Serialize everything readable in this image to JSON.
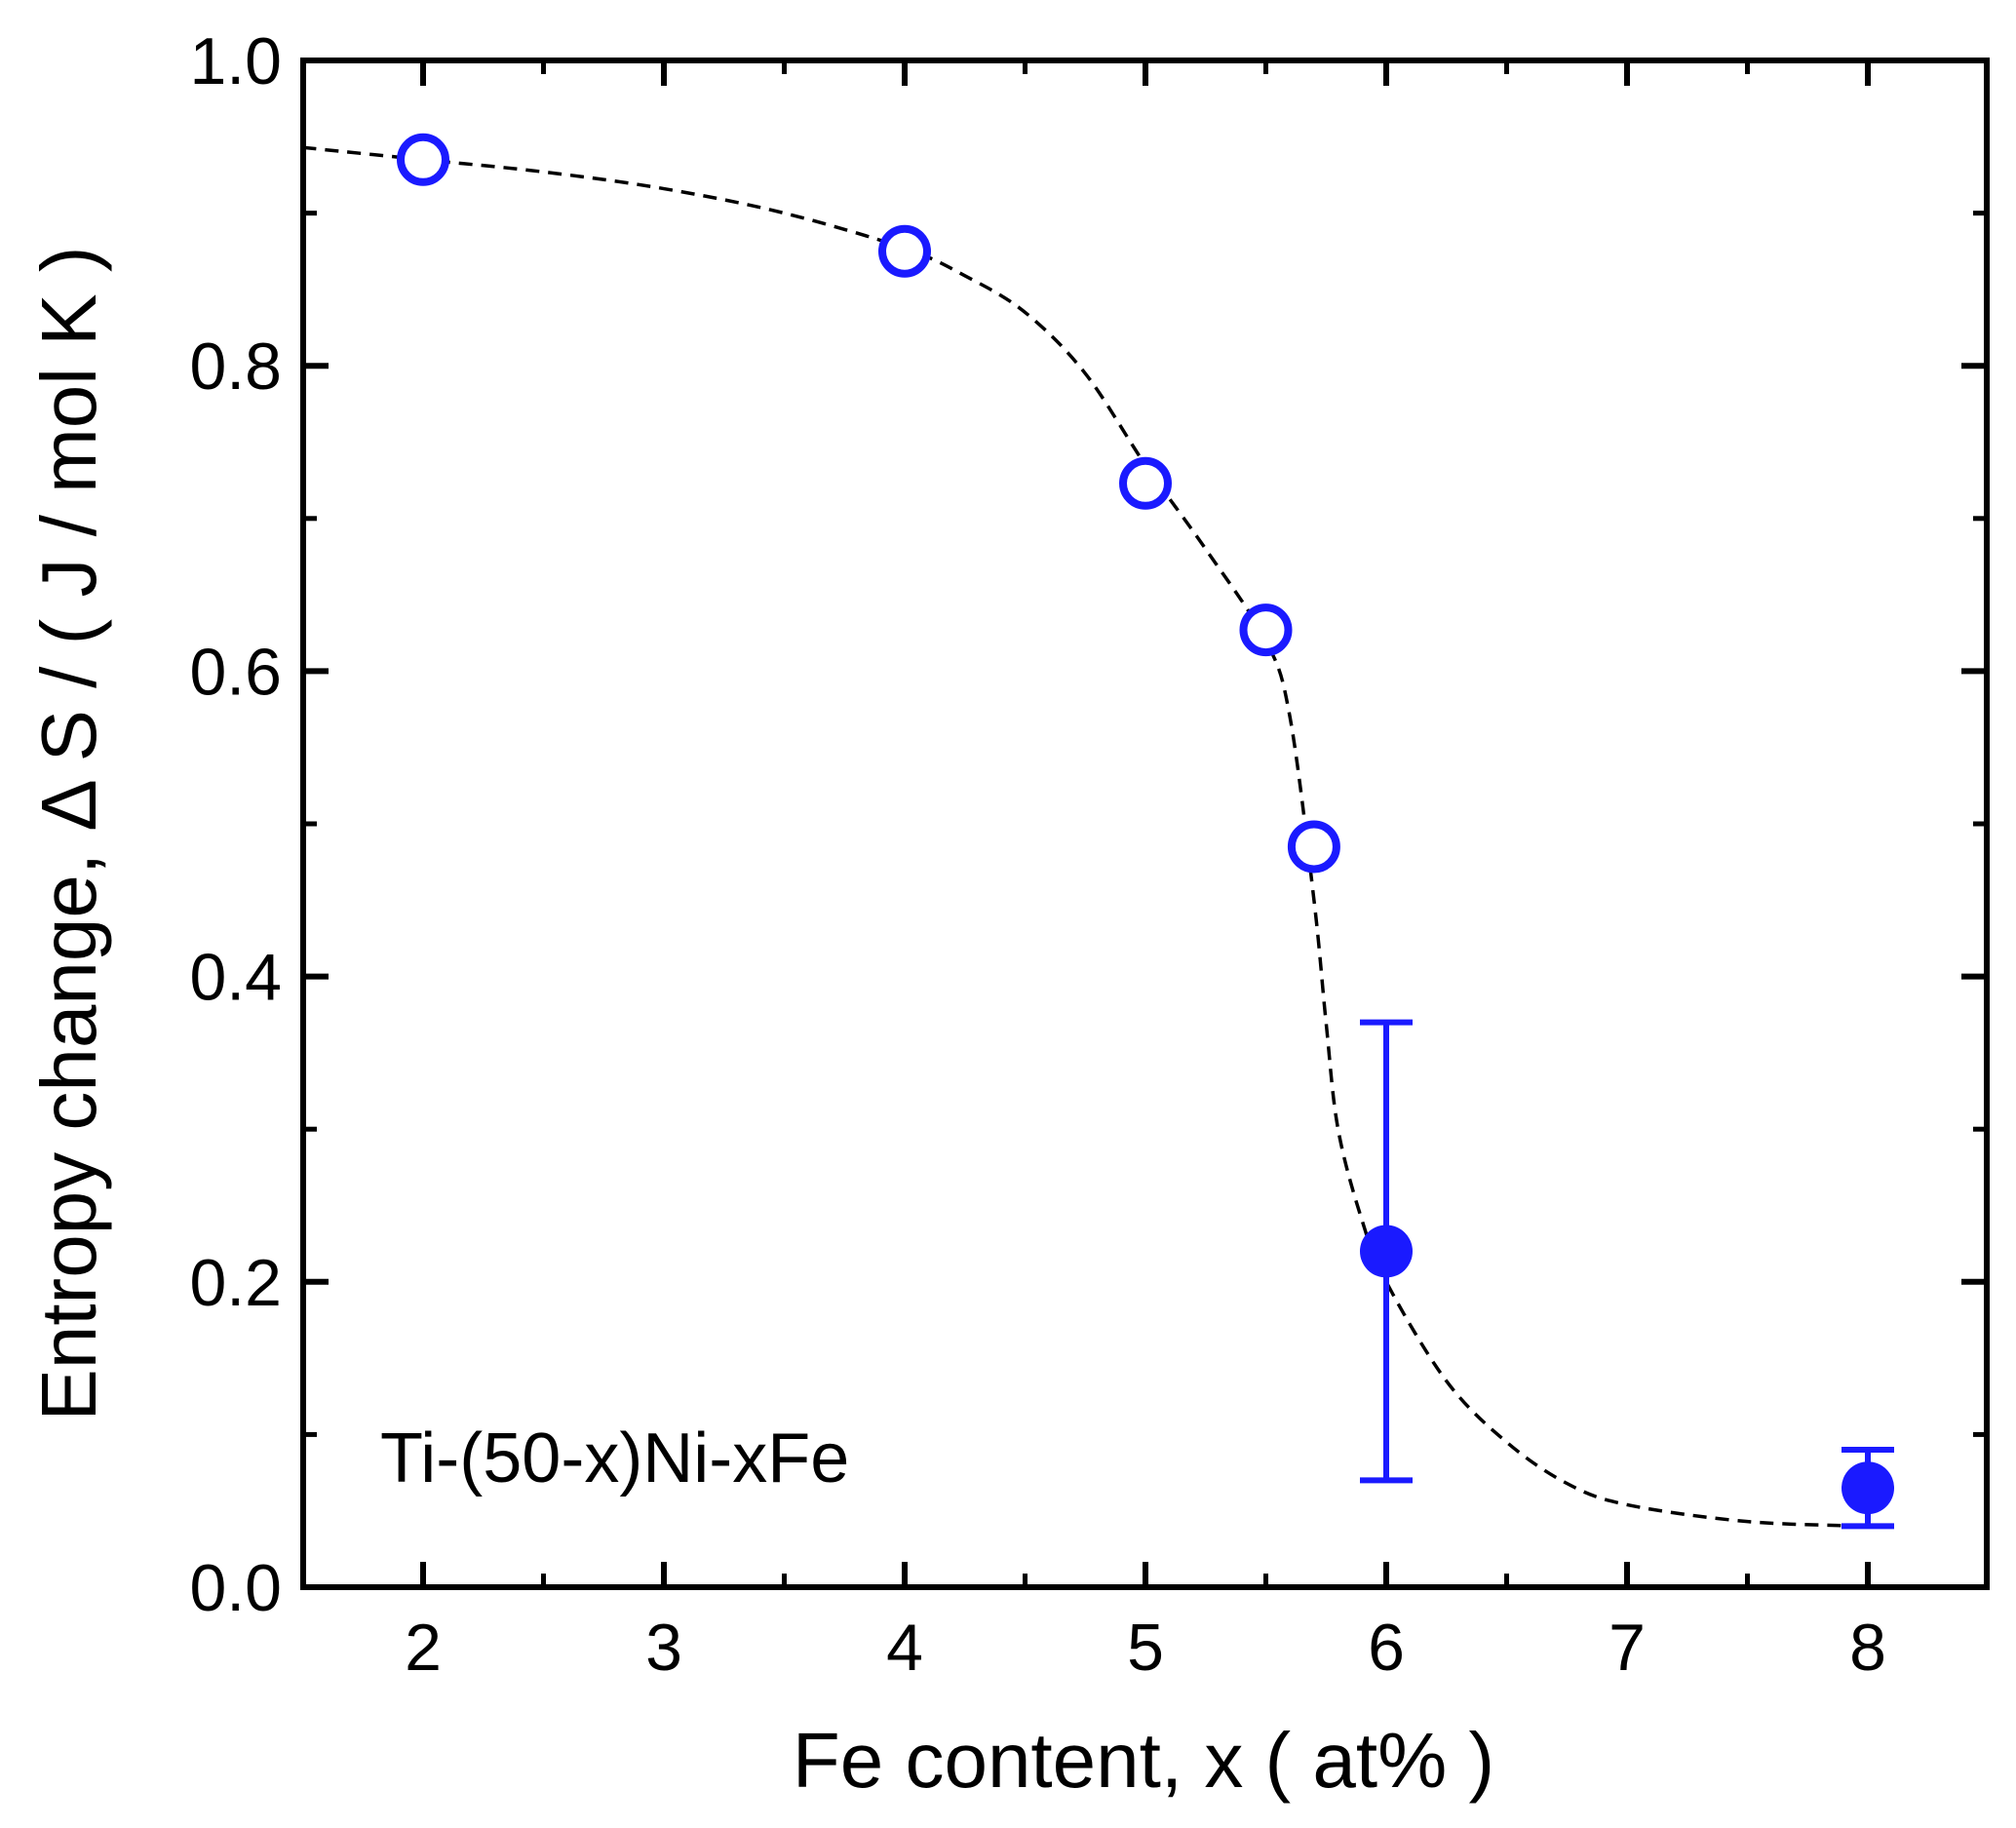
{
  "chart_data": {
    "type": "scatter",
    "xlabel": "Fe content, x ( at% )",
    "ylabel": "Entropy change,  Δ S / ( J / mol K )",
    "annotation": "Ti-(50-x)Ni-xFe",
    "x_ticks": [
      {
        "label": "2",
        "value": 2
      },
      {
        "label": "3",
        "value": 3
      },
      {
        "label": "4",
        "value": 4
      },
      {
        "label": "5",
        "value": 5
      },
      {
        "label": "6",
        "value": 6
      },
      {
        "label": "7",
        "value": 7
      },
      {
        "label": "8",
        "value": 8
      }
    ],
    "y_ticks": [
      {
        "label": "0.0",
        "value": 0.0
      },
      {
        "label": "0.2",
        "value": 0.2
      },
      {
        "label": "0.4",
        "value": 0.4
      },
      {
        "label": "0.6",
        "value": 0.6
      },
      {
        "label": "0.8",
        "value": 0.8
      },
      {
        "label": "1.0",
        "value": 1.0
      }
    ],
    "y_minor_ticks": [
      0.1,
      0.3,
      0.5,
      0.7,
      0.9
    ],
    "ylim": [
      0,
      1.0
    ],
    "x_axis_note": "non-linear axis: the labeled positions 2,3,4,5,6,7,8 are evenly spaced",
    "grid": false,
    "marker_color": "#1a1aff",
    "fit_line_color": "#000000",
    "fit_line_style": "dashed",
    "series": [
      {
        "marker": "open-circle",
        "points": [
          {
            "x": 2,
            "y": 0.935
          },
          {
            "x": 4,
            "y": 0.875
          },
          {
            "x": 5,
            "y": 0.723
          },
          {
            "x": 5.5,
            "y": 0.627
          },
          {
            "x": 5.7,
            "y": 0.485
          }
        ]
      },
      {
        "marker": "filled-circle",
        "points": [
          {
            "x": 6,
            "y": 0.22,
            "err_low": 0.07,
            "err_high": 0.37
          },
          {
            "x": 8,
            "y": 0.065,
            "err_low": 0.04,
            "err_high": 0.09
          }
        ]
      }
    ],
    "fit_curve": [
      {
        "x": 1.5,
        "y": 0.943
      },
      {
        "x": 2,
        "y": 0.935
      },
      {
        "x": 2.5,
        "y": 0.927
      },
      {
        "x": 3,
        "y": 0.916
      },
      {
        "x": 3.5,
        "y": 0.9
      },
      {
        "x": 4,
        "y": 0.877
      },
      {
        "x": 4.25,
        "y": 0.859
      },
      {
        "x": 4.5,
        "y": 0.835
      },
      {
        "x": 4.75,
        "y": 0.795
      },
      {
        "x": 5,
        "y": 0.735
      },
      {
        "x": 5.25,
        "y": 0.68
      },
      {
        "x": 5.5,
        "y": 0.62
      },
      {
        "x": 5.6,
        "y": 0.57
      },
      {
        "x": 5.7,
        "y": 0.45
      },
      {
        "x": 5.75,
        "y": 0.37
      },
      {
        "x": 5.8,
        "y": 0.3
      },
      {
        "x": 5.9,
        "y": 0.24
      },
      {
        "x": 6,
        "y": 0.2
      },
      {
        "x": 6.25,
        "y": 0.135
      },
      {
        "x": 6.5,
        "y": 0.095
      },
      {
        "x": 6.75,
        "y": 0.068
      },
      {
        "x": 7,
        "y": 0.054
      },
      {
        "x": 7.5,
        "y": 0.043
      },
      {
        "x": 8,
        "y": 0.04
      }
    ]
  }
}
